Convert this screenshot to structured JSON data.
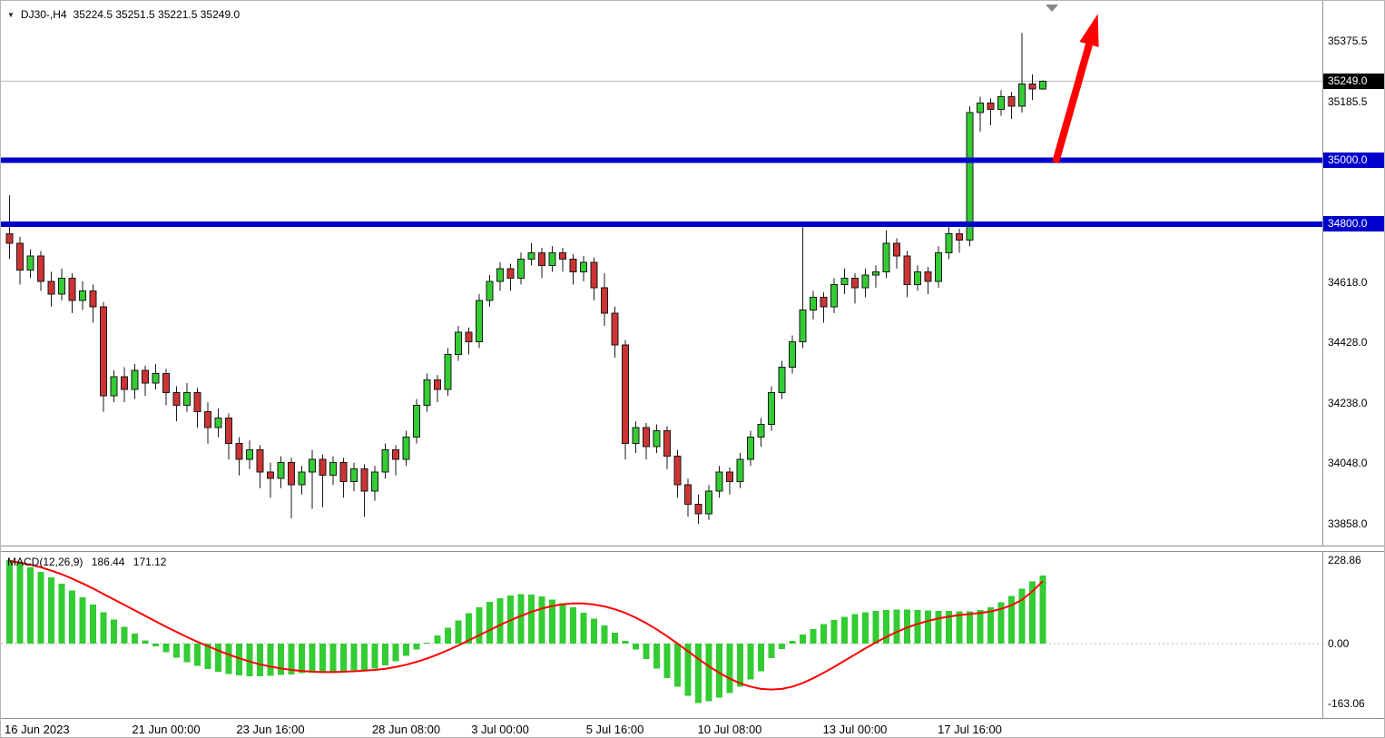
{
  "legend": {
    "marker": "▼",
    "symbol": "DJ30-,H4",
    "ohlc": "35224.5 35251.5 35221.5 35249.0"
  },
  "macd_legend": {
    "name": "MACD(12,26,9)",
    "main_value": "186.44",
    "signal_value": "171.12"
  },
  "chart_data": {
    "type": "candlestick",
    "symbol": "DJ30-",
    "timeframe": "H4",
    "last_candle": {
      "open": 35224.5,
      "high": 35251.5,
      "low": 35221.5,
      "close": 35249.0
    },
    "price_axis": {
      "ylim": [
        33790,
        35450
      ],
      "grid": false,
      "ticks": [
        {
          "label": "35375.5",
          "value": 35375.5
        },
        {
          "label": "35185.5",
          "value": 35185.5
        },
        {
          "label": "34618.0",
          "value": 34618.0
        },
        {
          "label": "34428.0",
          "value": 34428.0
        },
        {
          "label": "34238.0",
          "value": 34238.0
        },
        {
          "label": "34048.0",
          "value": 34048.0
        },
        {
          "label": "33858.0",
          "value": 33858.0
        }
      ],
      "current_price": {
        "label": "35249.0",
        "value": 35249.0
      }
    },
    "hlines": [
      {
        "label": "35000.0",
        "value": 35000.0,
        "color": "#0000CC"
      },
      {
        "label": "34800.0",
        "value": 34800.0,
        "color": "#0000CC"
      }
    ],
    "time_axis": {
      "labels": [
        "16 Jun 2023",
        "21 Jun 00:00",
        "23 Jun 16:00",
        "28 Jun 08:00",
        "3 Jul 00:00",
        "5 Jul 16:00",
        "10 Jul 08:00",
        "13 Jul 00:00",
        "17 Jul 16:00"
      ],
      "candle_indices": [
        0,
        15,
        25,
        38,
        47,
        58,
        69,
        81,
        92
      ]
    },
    "colors": {
      "up": "#33CC33",
      "down": "#CC3333",
      "wick": "#1a1a1a",
      "hline": "#0000CC",
      "current_price_line": "#b8b8b8",
      "macd_histogram": "#33CC33",
      "macd_signal": "#FF0000",
      "arrow": "#FF0000",
      "shift_marker": "#888888"
    },
    "candles": [
      [
        34770,
        34890,
        34690,
        34740
      ],
      [
        34740,
        34760,
        34610,
        34655
      ],
      [
        34655,
        34720,
        34630,
        34700
      ],
      [
        34700,
        34715,
        34590,
        34620
      ],
      [
        34620,
        34650,
        34540,
        34580
      ],
      [
        34580,
        34660,
        34560,
        34630
      ],
      [
        34630,
        34645,
        34520,
        34560
      ],
      [
        34560,
        34620,
        34530,
        34590
      ],
      [
        34590,
        34610,
        34490,
        34540
      ],
      [
        34540,
        34555,
        34210,
        34260
      ],
      [
        34260,
        34340,
        34240,
        34320
      ],
      [
        34320,
        34350,
        34240,
        34280
      ],
      [
        34280,
        34360,
        34250,
        34340
      ],
      [
        34340,
        34355,
        34260,
        34300
      ],
      [
        34300,
        34360,
        34280,
        34330
      ],
      [
        34330,
        34345,
        34230,
        34270
      ],
      [
        34270,
        34290,
        34180,
        34230
      ],
      [
        34230,
        34300,
        34210,
        34270
      ],
      [
        34270,
        34285,
        34160,
        34210
      ],
      [
        34210,
        34240,
        34110,
        34160
      ],
      [
        34160,
        34220,
        34130,
        34190
      ],
      [
        34190,
        34205,
        34060,
        34110
      ],
      [
        34110,
        34130,
        34010,
        34060
      ],
      [
        34060,
        34120,
        34030,
        34090
      ],
      [
        34090,
        34105,
        33970,
        34020
      ],
      [
        34020,
        34050,
        33940,
        34000
      ],
      [
        34000,
        34070,
        33970,
        34050
      ],
      [
        34050,
        34065,
        33875,
        33980
      ],
      [
        33980,
        34040,
        33950,
        34020
      ],
      [
        34020,
        34090,
        33905,
        34060
      ],
      [
        34060,
        34075,
        33910,
        34010
      ],
      [
        34010,
        34070,
        33980,
        34050
      ],
      [
        34050,
        34065,
        33940,
        33990
      ],
      [
        33990,
        34050,
        33960,
        34030
      ],
      [
        34030,
        34045,
        33880,
        33960
      ],
      [
        33960,
        34040,
        33930,
        34020
      ],
      [
        34020,
        34110,
        34000,
        34090
      ],
      [
        34090,
        34105,
        34010,
        34060
      ],
      [
        34060,
        34150,
        34040,
        34130
      ],
      [
        34130,
        34250,
        34110,
        34230
      ],
      [
        34230,
        34330,
        34210,
        34310
      ],
      [
        34310,
        34325,
        34240,
        34280
      ],
      [
        34280,
        34410,
        34260,
        34390
      ],
      [
        34390,
        34480,
        34370,
        34460
      ],
      [
        34460,
        34475,
        34390,
        34430
      ],
      [
        34430,
        34580,
        34410,
        34560
      ],
      [
        34560,
        34640,
        34540,
        34620
      ],
      [
        34620,
        34680,
        34590,
        34660
      ],
      [
        34660,
        34675,
        34590,
        34630
      ],
      [
        34630,
        34710,
        34610,
        34690
      ],
      [
        34690,
        34740,
        34670,
        34710
      ],
      [
        34710,
        34725,
        34630,
        34670
      ],
      [
        34670,
        34730,
        34650,
        34710
      ],
      [
        34710,
        34725,
        34650,
        34690
      ],
      [
        34690,
        34705,
        34610,
        34650
      ],
      [
        34650,
        34700,
        34620,
        34680
      ],
      [
        34680,
        34695,
        34560,
        34600
      ],
      [
        34600,
        34645,
        34480,
        34520
      ],
      [
        34520,
        34540,
        34380,
        34420
      ],
      [
        34420,
        34435,
        34060,
        34110
      ],
      [
        34110,
        34180,
        34080,
        34160
      ],
      [
        34160,
        34175,
        34060,
        34100
      ],
      [
        34100,
        34170,
        34080,
        34150
      ],
      [
        34150,
        34165,
        34030,
        34070
      ],
      [
        34070,
        34090,
        33940,
        33980
      ],
      [
        33980,
        34000,
        33880,
        33920
      ],
      [
        33920,
        33950,
        33858,
        33890
      ],
      [
        33890,
        33980,
        33870,
        33960
      ],
      [
        33960,
        34040,
        33940,
        34020
      ],
      [
        34020,
        34035,
        33950,
        33990
      ],
      [
        33990,
        34080,
        33970,
        34060
      ],
      [
        34060,
        34150,
        34040,
        34130
      ],
      [
        34130,
        34190,
        34100,
        34170
      ],
      [
        34170,
        34290,
        34150,
        34270
      ],
      [
        34270,
        34370,
        34250,
        34350
      ],
      [
        34350,
        34450,
        34330,
        34430
      ],
      [
        34430,
        34790,
        34410,
        34530
      ],
      [
        34530,
        34590,
        34500,
        34570
      ],
      [
        34570,
        34585,
        34490,
        34540
      ],
      [
        34540,
        34630,
        34520,
        34610
      ],
      [
        34610,
        34660,
        34580,
        34630
      ],
      [
        34630,
        34645,
        34550,
        34600
      ],
      [
        34600,
        34660,
        34570,
        34640
      ],
      [
        34640,
        34670,
        34600,
        34650
      ],
      [
        34650,
        34780,
        34630,
        34740
      ],
      [
        34740,
        34755,
        34660,
        34700
      ],
      [
        34700,
        34715,
        34570,
        34610
      ],
      [
        34610,
        34670,
        34590,
        34650
      ],
      [
        34650,
        34665,
        34580,
        34620
      ],
      [
        34620,
        34730,
        34600,
        34710
      ],
      [
        34710,
        34790,
        34690,
        34770
      ],
      [
        34770,
        34785,
        34710,
        34750
      ],
      [
        34750,
        35170,
        34730,
        35150
      ],
      [
        35150,
        35200,
        35090,
        35180
      ],
      [
        35180,
        35195,
        35110,
        35160
      ],
      [
        35160,
        35220,
        35140,
        35200
      ],
      [
        35200,
        35215,
        35130,
        35170
      ],
      [
        35170,
        35400,
        35150,
        35240
      ],
      [
        35240,
        35270,
        35190,
        35225
      ],
      [
        35224.5,
        35251.5,
        35221.5,
        35249.0
      ]
    ],
    "macd": {
      "name": "MACD",
      "params": "12,26,9",
      "main_last": 186.44,
      "signal_last": 171.12,
      "axis_ticks": [
        {
          "label": "228.86",
          "value": 228.86
        },
        {
          "label": "0.00",
          "value": 0
        },
        {
          "label": "-163.06",
          "value": -163.06
        }
      ],
      "histogram": [
        228.86,
        220,
        209,
        196,
        181,
        164,
        146,
        127,
        107,
        86,
        66,
        46,
        27,
        9,
        -8,
        -24,
        -38,
        -51,
        -61,
        -70,
        -77,
        -83,
        -87,
        -89,
        -89,
        -88,
        -86,
        -84,
        -81,
        -80,
        -79,
        -77,
        -75,
        -73,
        -72,
        -68,
        -60,
        -48,
        -33,
        -16,
        3,
        23,
        44,
        64,
        83,
        100,
        114,
        125,
        132,
        135,
        134,
        129,
        121,
        111,
        99,
        85,
        68,
        50,
        30,
        8,
        -16,
        -42,
        -68,
        -94,
        -118,
        -143,
        -163.06,
        -158,
        -148,
        -135,
        -118,
        -98,
        -76,
        -40,
        -15,
        8,
        25,
        40,
        54,
        65,
        74,
        81,
        86,
        90,
        92,
        93,
        93,
        92,
        91,
        90,
        89,
        88,
        88,
        92,
        100,
        113,
        130,
        150,
        170,
        186.44
      ],
      "signal": [
        226,
        222,
        216,
        209,
        200,
        190,
        178,
        165,
        151,
        136,
        121,
        106,
        91,
        76,
        61,
        46,
        32,
        18,
        5,
        -7,
        -19,
        -30,
        -40,
        -49,
        -57,
        -63,
        -68,
        -72,
        -75,
        -77,
        -78,
        -78,
        -77,
        -76,
        -74,
        -72,
        -69,
        -64,
        -58,
        -50,
        -41,
        -30,
        -18,
        -5,
        9,
        23,
        37,
        51,
        64,
        76,
        87,
        96,
        103,
        108,
        110,
        110,
        107,
        102,
        94,
        84,
        71,
        56,
        39,
        20,
        0,
        -21,
        -42,
        -62,
        -80,
        -96,
        -109,
        -118,
        -124,
        -126,
        -124,
        -118,
        -108,
        -95,
        -80,
        -64,
        -47,
        -30,
        -13,
        3,
        18,
        32,
        44,
        54,
        62,
        69,
        74,
        78,
        81,
        84,
        88,
        95,
        105,
        120,
        143,
        171.12
      ]
    }
  }
}
